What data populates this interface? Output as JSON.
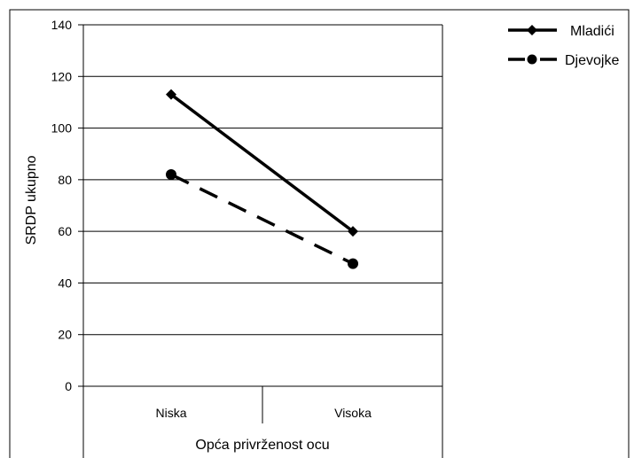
{
  "chart_data": {
    "type": "line",
    "categories": [
      "Niska",
      "Visoka"
    ],
    "series": [
      {
        "name": "Mladići",
        "values": [
          113,
          60
        ],
        "line_style": "solid",
        "marker": "diamond",
        "color": "#000000"
      },
      {
        "name": "Djevojke",
        "values": [
          82,
          47.5
        ],
        "line_style": "dashed",
        "marker": "circle",
        "color": "#000000"
      }
    ],
    "title": "",
    "xlabel": "Opća privrženost ocu",
    "ylabel": "SRDP ukupno",
    "ylim": [
      0,
      140
    ],
    "yticks": [
      "0",
      "20",
      "40",
      "60",
      "80",
      "100",
      "120",
      "140"
    ],
    "grid": true,
    "legend_position": "top-right"
  }
}
